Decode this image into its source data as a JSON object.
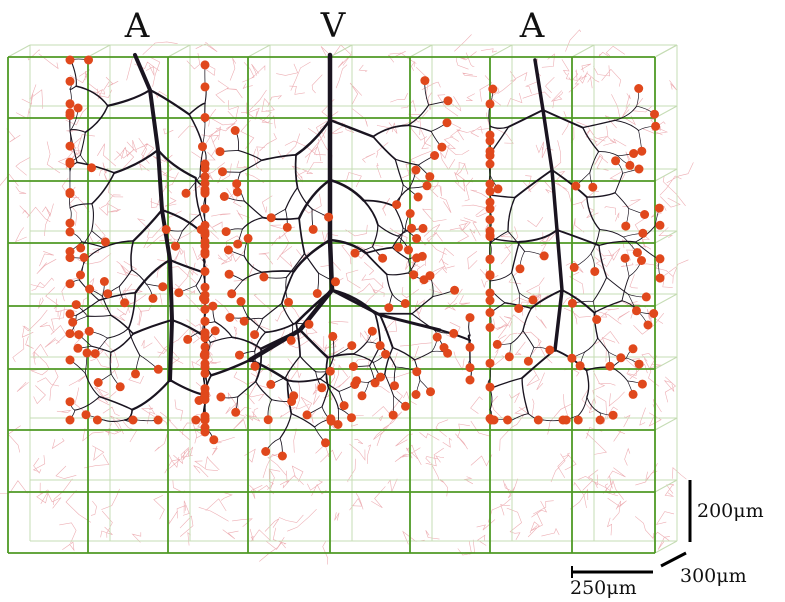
{
  "labels": [
    "A",
    "V",
    "A"
  ],
  "scale_bars": {
    "vertical": "200μm",
    "horizontal": "250μm",
    "depth": "300μm"
  }
}
